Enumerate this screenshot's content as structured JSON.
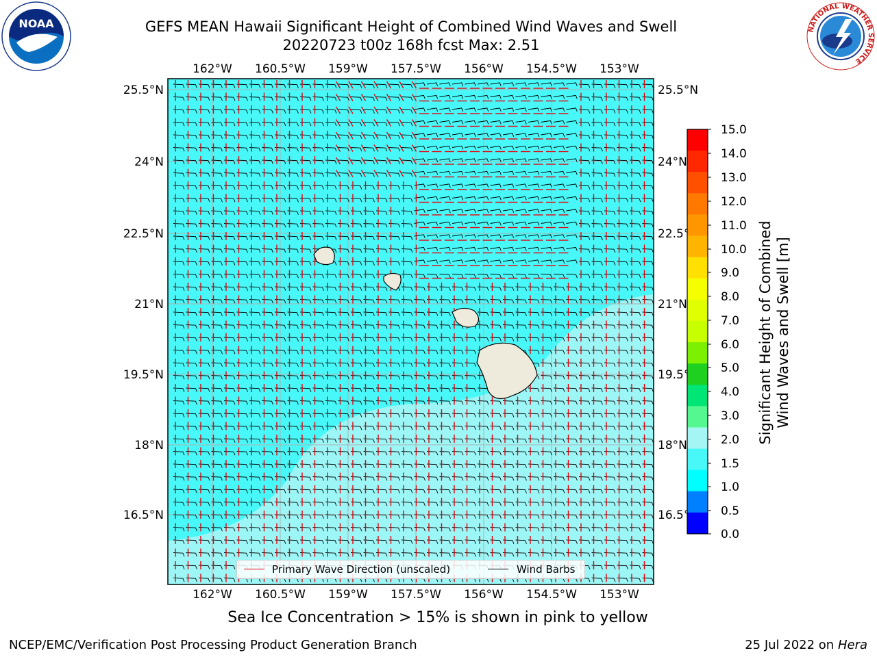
{
  "title": {
    "line1": "GEFS MEAN Hawaii Significant Height of Combined Wind Waves and Swell",
    "line2": "20220723 t00z 168h fcst   Max: 2.51"
  },
  "map": {
    "lon_labels": [
      "162°W",
      "160.5°W",
      "159°W",
      "157.5°W",
      "156°W",
      "154.5°W",
      "153°W"
    ],
    "lat_labels": [
      "25.5°N",
      "24°N",
      "22.5°N",
      "21°N",
      "19.5°N",
      "18°N",
      "16.5°N"
    ],
    "colors": {
      "ocean": "#48f8f8",
      "ocean_light": "#a6f5f5",
      "land": "#efebdc",
      "wave_arrow": "#e8000b",
      "wind_barb": "#000000",
      "gridline": "#b0b0b0"
    },
    "islands": [
      "Kauai",
      "Oahu",
      "Maui",
      "Hawaii"
    ],
    "legend": {
      "wave_label": "Primary Wave Direction (unscaled)",
      "barb_label": "Wind Barbs"
    }
  },
  "colorbar": {
    "label_line1": "Significant Height of Combined",
    "label_line2": "Wind Waves and Swell [m]",
    "ticks": [
      "15.0",
      "14.0",
      "13.0",
      "12.0",
      "11.0",
      "10.0",
      "9.0",
      "8.0",
      "7.0",
      "6.0",
      "5.0",
      "4.0",
      "3.0",
      "2.0",
      "1.5",
      "1.0",
      "0.5",
      "0.0"
    ],
    "colors_top_to_bottom": [
      "#ff0000",
      "#ff2800",
      "#ff5000",
      "#ff7800",
      "#ff9600",
      "#ffb400",
      "#ffe000",
      "#f5ff00",
      "#e0ff00",
      "#c8ff00",
      "#7cf000",
      "#20d020",
      "#00e676",
      "#55f890",
      "#a6f5f5",
      "#48f8f8",
      "#00ffff",
      "#0080ff",
      "#0000ff"
    ]
  },
  "caption": "Sea Ice Concentration > 15% is shown in pink to yellow",
  "footer": {
    "left": "NCEP/EMC/Verification Post Processing Product Generation Branch",
    "date": "25 Jul 2022 on",
    "machine": "Hera"
  },
  "logos": {
    "noaa_icon": "noaa-logo-icon",
    "nws_icon": "nws-logo-icon",
    "noaa_text": "NOAA",
    "nws_ring_text": "NATIONAL WEATHER SERVICE"
  }
}
